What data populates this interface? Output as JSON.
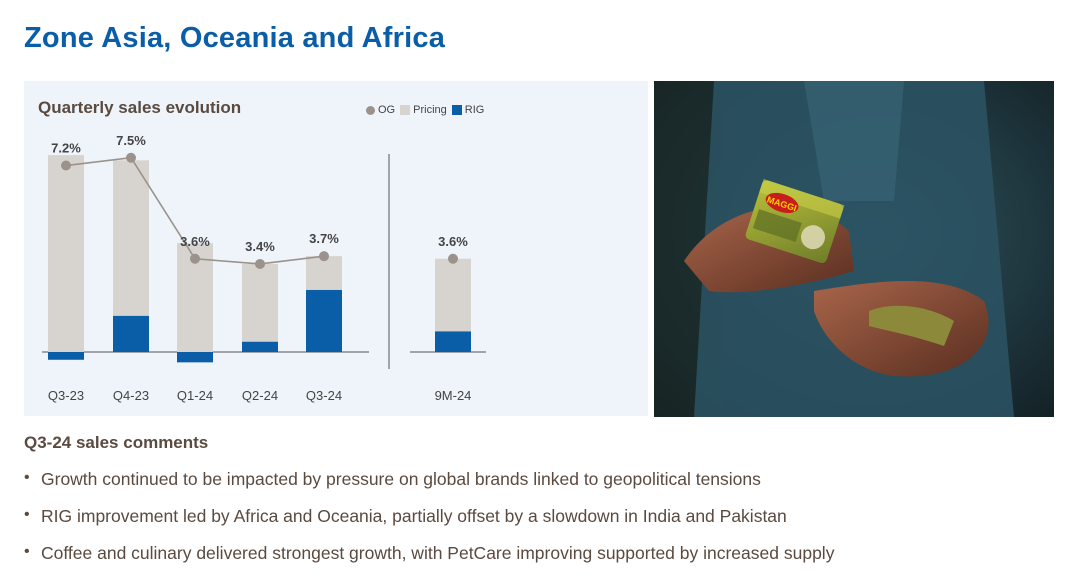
{
  "page": {
    "title": "Zone Asia, Oceania and Africa"
  },
  "chart_data": {
    "type": "bar",
    "title": "Quarterly sales evolution",
    "legend": {
      "position": "top-right",
      "entries": [
        {
          "label": "OG",
          "kind": "dot",
          "color": "#9b928c"
        },
        {
          "label": "Pricing",
          "kind": "square",
          "color": "#d7d3ce"
        },
        {
          "label": "RIG",
          "kind": "square",
          "color": "#0a5ea8"
        }
      ]
    },
    "colors": {
      "pricing": "#d7d3ce",
      "rig": "#0a5ea8",
      "og": "#9b928c",
      "axis": "#555555"
    },
    "categories": [
      "Q3-23",
      "Q4-23",
      "Q1-24",
      "Q2-24",
      "Q3-24"
    ],
    "series": [
      {
        "name": "Pricing",
        "values": [
          7.6,
          6.0,
          4.2,
          3.0,
          1.3
        ]
      },
      {
        "name": "RIG",
        "values": [
          -0.3,
          1.4,
          -0.4,
          0.4,
          2.4
        ]
      },
      {
        "name": "OG",
        "values": [
          7.2,
          7.5,
          3.6,
          3.4,
          3.7
        ]
      }
    ],
    "og_labels": [
      "7.2%",
      "7.5%",
      "3.6%",
      "3.4%",
      "3.7%"
    ],
    "ytd": {
      "category": "9M-24",
      "pricing": 2.8,
      "rig": 0.8,
      "og": 3.6,
      "og_label": "3.6%"
    },
    "stacked": true,
    "grid": false
  },
  "photo": {
    "description_icon": "hands-holding-bouillon-cube-photo",
    "brand_logo_text": "MAGGI"
  },
  "comments": {
    "title": "Q3-24 sales comments",
    "bullet_glyph": "•",
    "items": [
      "Growth continued to be impacted by pressure on global brands linked to geopolitical tensions",
      "RIG improvement led by Africa and Oceania, partially offset by a slowdown in India and Pakistan",
      "Coffee and culinary delivered strongest growth, with PetCare improving supported by increased supply"
    ]
  }
}
